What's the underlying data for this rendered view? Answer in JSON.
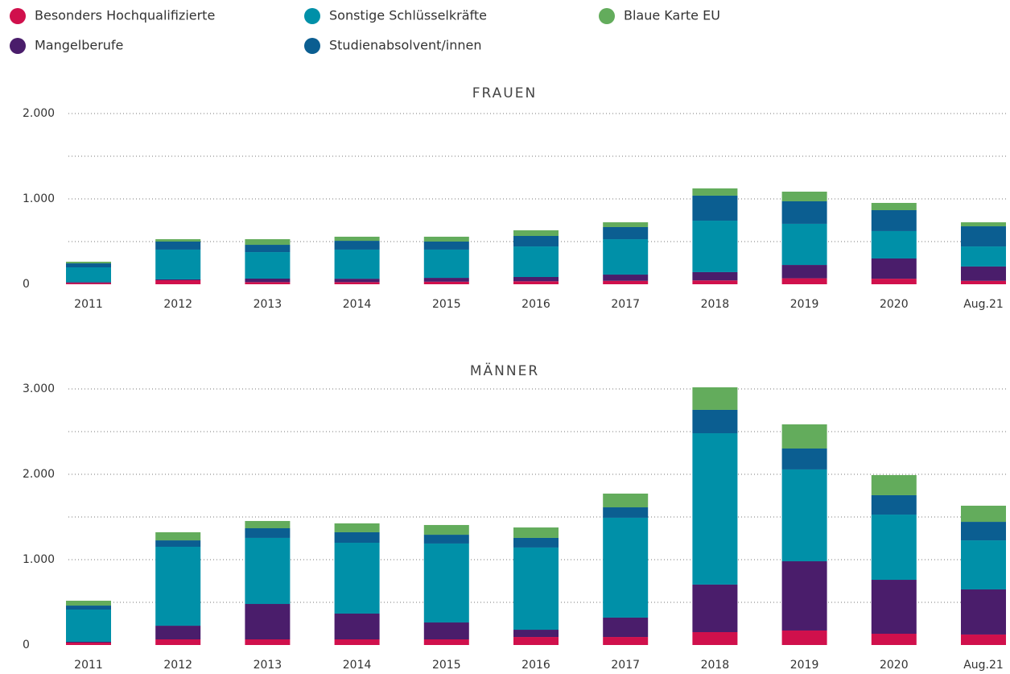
{
  "legend_columns": 3,
  "chart_data": [
    {
      "type": "bar",
      "stacked": true,
      "title": "FRAUEN",
      "categories": [
        "2011",
        "2012",
        "2013",
        "2014",
        "2015",
        "2016",
        "2017",
        "2018",
        "2019",
        "2020",
        "Aug.21"
      ],
      "ylim": [
        0,
        2000
      ],
      "yticks": [
        0,
        {
          "value": 1000,
          "label": "1.000"
        },
        {
          "value": 2000,
          "label": "2.000"
        }
      ],
      "minor_grid": [
        500,
        1500
      ],
      "grid": true,
      "series": [
        {
          "name": "Besonders Hochqualifizierte",
          "color": "#d0104c",
          "values": [
            15,
            47,
            25,
            25,
            30,
            35,
            40,
            45,
            70,
            65,
            40
          ]
        },
        {
          "name": "Mangelberufe",
          "color": "#4a1d6b",
          "values": [
            10,
            10,
            41,
            40,
            45,
            50,
            73,
            97,
            156,
            237,
            168
          ]
        },
        {
          "name": "Sonstige Schlüsselkräfte",
          "color": "#0090a8",
          "values": [
            173,
            349,
            311,
            341,
            331,
            358,
            415,
            603,
            482,
            321,
            235
          ]
        },
        {
          "name": "Studienabsolvent/innen",
          "color": "#0b5e91",
          "values": [
            47,
            94,
            85,
            103,
            94,
            123,
            142,
            293,
            264,
            245,
            236
          ]
        },
        {
          "name": "Blaue Karte EU",
          "color": "#63ac5c",
          "values": [
            19,
            28,
            66,
            48,
            57,
            66,
            56,
            85,
            113,
            85,
            47
          ]
        }
      ]
    },
    {
      "type": "bar",
      "stacked": true,
      "title": "MÄNNER",
      "categories": [
        "2011",
        "2012",
        "2013",
        "2014",
        "2015",
        "2016",
        "2017",
        "2018",
        "2019",
        "2020",
        "Aug.21"
      ],
      "ylim": [
        0,
        3000
      ],
      "yticks": [
        0,
        {
          "value": 1000,
          "label": "1.000"
        },
        {
          "value": 2000,
          "label": "2.000"
        },
        {
          "value": 3000,
          "label": "3.000"
        }
      ],
      "minor_grid": [
        500,
        1500,
        2500
      ],
      "grid": true,
      "series": [
        {
          "name": "Besonders Hochqualifizierte",
          "color": "#d0104c",
          "values": [
            28,
            66,
            66,
            66,
            66,
            94,
            94,
            151,
            170,
            132,
            123
          ]
        },
        {
          "name": "Mangelberufe",
          "color": "#4a1d6b",
          "values": [
            10,
            160,
            415,
            302,
            198,
            85,
            227,
            557,
            811,
            632,
            528
          ]
        },
        {
          "name": "Sonstige Schlüsselkräfte",
          "color": "#0090a8",
          "values": [
            377,
            925,
            774,
            830,
            925,
            963,
            1170,
            1773,
            1076,
            764,
            575
          ]
        },
        {
          "name": "Studienabsolvent/innen",
          "color": "#0b5e91",
          "values": [
            47,
            75,
            113,
            123,
            103,
            113,
            122,
            274,
            245,
            227,
            217
          ]
        },
        {
          "name": "Blaue Karte EU",
          "color": "#63ac5c",
          "values": [
            57,
            95,
            85,
            104,
            114,
            122,
            161,
            264,
            283,
            236,
            189
          ]
        }
      ]
    }
  ]
}
